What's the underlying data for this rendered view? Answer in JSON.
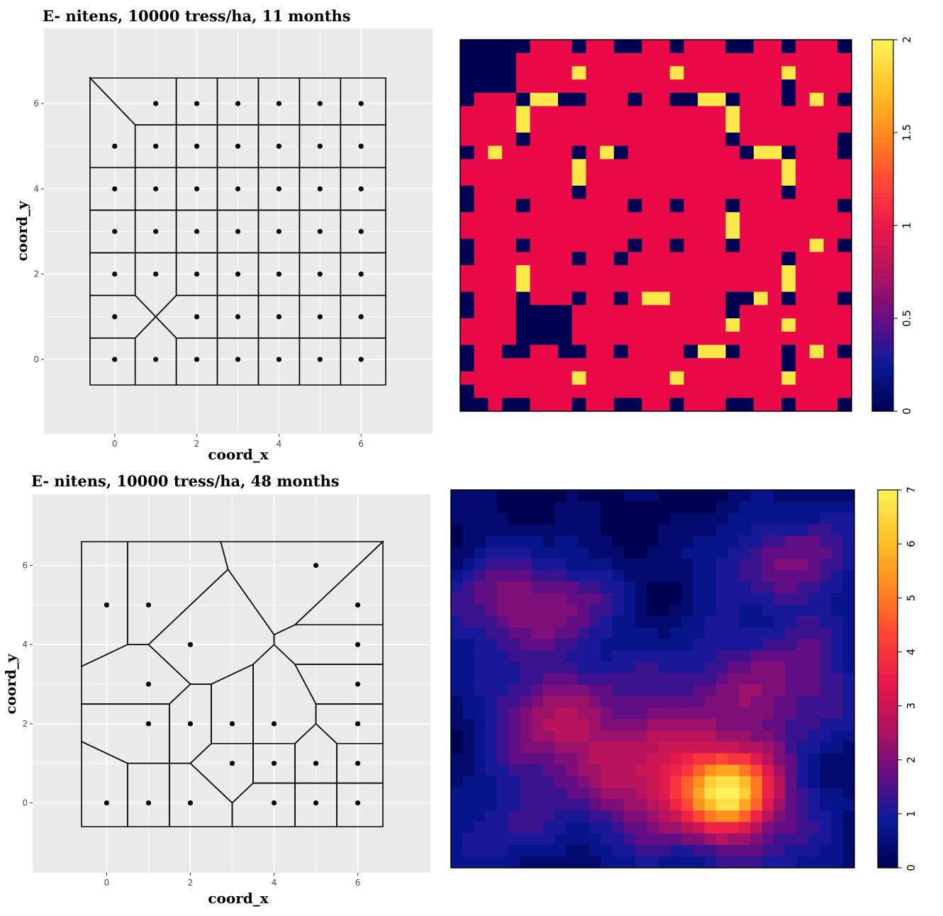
{
  "chart_data": [
    {
      "type": "voronoi",
      "title": "E- nitens, 10000 tress/ha, 11 months",
      "xlabel": "coord_x",
      "ylabel": "coord_y",
      "xlim": [
        -0.6,
        6.6
      ],
      "ylim": [
        -0.6,
        6.6
      ],
      "xticks": [
        "0",
        "2",
        "4",
        "6"
      ],
      "yticks": [
        "0",
        "2",
        "4",
        "6"
      ],
      "grid": true,
      "points": [
        [
          1,
          6
        ],
        [
          2,
          6
        ],
        [
          3,
          6
        ],
        [
          4,
          6
        ],
        [
          5,
          6
        ],
        [
          6,
          6
        ],
        [
          0,
          5
        ],
        [
          1,
          5
        ],
        [
          2,
          5
        ],
        [
          3,
          5
        ],
        [
          4,
          5
        ],
        [
          5,
          5
        ],
        [
          6,
          5
        ],
        [
          0,
          4
        ],
        [
          1,
          4
        ],
        [
          2,
          4
        ],
        [
          3,
          4
        ],
        [
          4,
          4
        ],
        [
          5,
          4
        ],
        [
          6,
          4
        ],
        [
          0,
          3
        ],
        [
          1,
          3
        ],
        [
          2,
          3
        ],
        [
          3,
          3
        ],
        [
          4,
          3
        ],
        [
          5,
          3
        ],
        [
          6,
          3
        ],
        [
          0,
          2
        ],
        [
          1,
          2
        ],
        [
          2,
          2
        ],
        [
          3,
          2
        ],
        [
          4,
          2
        ],
        [
          5,
          2
        ],
        [
          6,
          2
        ],
        [
          0,
          1
        ],
        [
          2,
          1
        ],
        [
          3,
          1
        ],
        [
          4,
          1
        ],
        [
          5,
          1
        ],
        [
          6,
          1
        ],
        [
          0,
          0
        ],
        [
          1,
          0
        ],
        [
          2,
          0
        ],
        [
          3,
          0
        ],
        [
          4,
          0
        ],
        [
          5,
          0
        ],
        [
          6,
          0
        ]
      ]
    },
    {
      "type": "heatmap",
      "palette": [
        "#000052",
        "#0a1a9b",
        "#6a0d83",
        "#b5145e",
        "#ea1a4a",
        "#ff4a33",
        "#ff8c1f",
        "#ffc42a",
        "#fff25a"
      ],
      "zlim": [
        0,
        2
      ],
      "colorbar_ticks": [
        "0",
        "0.5",
        "1",
        "1.5",
        "2"
      ]
    },
    {
      "type": "voronoi",
      "title": "E- nitens, 10000 tress/ha, 48 months",
      "xlabel": "coord_x",
      "ylabel": "coord_y",
      "xlim": [
        -0.6,
        6.6
      ],
      "ylim": [
        -0.6,
        6.6
      ],
      "xticks": [
        "0",
        "2",
        "4",
        "6"
      ],
      "yticks": [
        "0",
        "2",
        "4",
        "6"
      ],
      "grid": true,
      "points": [
        [
          5,
          6
        ],
        [
          0,
          5
        ],
        [
          1,
          5
        ],
        [
          6,
          5
        ],
        [
          2,
          4
        ],
        [
          6,
          4
        ],
        [
          1,
          3
        ],
        [
          6,
          3
        ],
        [
          1,
          2
        ],
        [
          2,
          2
        ],
        [
          3,
          2
        ],
        [
          4,
          2
        ],
        [
          6,
          2
        ],
        [
          3,
          1
        ],
        [
          4,
          1
        ],
        [
          5,
          1
        ],
        [
          6,
          1
        ],
        [
          0,
          0
        ],
        [
          1,
          0
        ],
        [
          2,
          0
        ],
        [
          4,
          0
        ],
        [
          5,
          0
        ],
        [
          6,
          0
        ]
      ]
    },
    {
      "type": "heatmap",
      "palette": [
        "#000052",
        "#0a1a9b",
        "#6a0d83",
        "#b5145e",
        "#ea1a4a",
        "#ff4a33",
        "#ff8c1f",
        "#ffc42a",
        "#fff25a"
      ],
      "zlim": [
        0,
        7
      ],
      "colorbar_ticks": [
        "0",
        "1",
        "2",
        "3",
        "4",
        "5",
        "6",
        "7"
      ]
    }
  ]
}
